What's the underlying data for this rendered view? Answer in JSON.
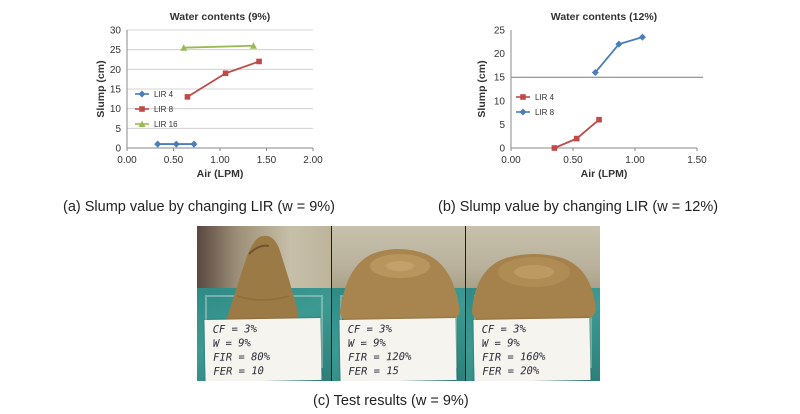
{
  "figure": {
    "caption_a": "(a) Slump value by changing LIR (w = 9%)",
    "caption_b": "(b) Slump value by changing LIR (w = 12%)",
    "caption_c": "(c) Test results (w = 9%)"
  },
  "chart_data": [
    {
      "type": "line",
      "title": "Water contents (9%)",
      "xlabel": "Air (LPM)",
      "ylabel": "Slump (cm)",
      "xlim": [
        0,
        2
      ],
      "ylim": [
        0,
        30
      ],
      "xticks": [
        "0.00",
        "0.50",
        "1.00",
        "1.50",
        "2.00"
      ],
      "yticks": [
        "0",
        "5",
        "10",
        "15",
        "20",
        "25",
        "30"
      ],
      "grid": true,
      "legend_position": "left",
      "series": [
        {
          "name": "LIR 4",
          "color": "#4a7ebb",
          "marker": "diamond",
          "x": [
            0.33,
            0.53,
            0.72
          ],
          "y": [
            1,
            1,
            1
          ]
        },
        {
          "name": "LIR 8",
          "color": "#be4b48",
          "marker": "square",
          "x": [
            0.65,
            1.06,
            1.42
          ],
          "y": [
            13,
            19,
            22
          ]
        },
        {
          "name": "LIR 16",
          "color": "#98b954",
          "marker": "triangle",
          "x": [
            0.61,
            1.36
          ],
          "y": [
            25.5,
            26
          ]
        }
      ]
    },
    {
      "type": "line",
      "title": "Water contents (12%)",
      "xlabel": "Air (LPM)",
      "ylabel": "Slump (cm)",
      "xlim": [
        0,
        1.5
      ],
      "ylim": [
        0,
        25
      ],
      "xticks": [
        "0.00",
        "0.50",
        "1.00",
        "1.50"
      ],
      "yticks": [
        "0",
        "5",
        "10",
        "15",
        "20",
        "25"
      ],
      "grid": false,
      "horizontal_rule_at": 15,
      "legend_position": "left",
      "series": [
        {
          "name": "LIR 4",
          "color": "#be4b48",
          "marker": "square",
          "x": [
            0.35,
            0.53,
            0.71
          ],
          "y": [
            0,
            2,
            6
          ]
        },
        {
          "name": "LIR 8",
          "color": "#4a7ebb",
          "marker": "diamond",
          "x": [
            0.68,
            0.87,
            1.06
          ],
          "y": [
            16,
            22,
            23.5
          ]
        }
      ]
    }
  ],
  "photos": [
    {
      "notes": [
        "CF = 3%",
        "W = 9%",
        "FIR = 80%",
        "FER = 10"
      ]
    },
    {
      "notes": [
        "CF = 3%",
        "W = 9%",
        "FIR = 120%",
        "FER = 15"
      ]
    },
    {
      "notes": [
        "CF = 3%",
        "W = 9%",
        "FIR = 160%",
        "FER = 20%"
      ]
    }
  ]
}
